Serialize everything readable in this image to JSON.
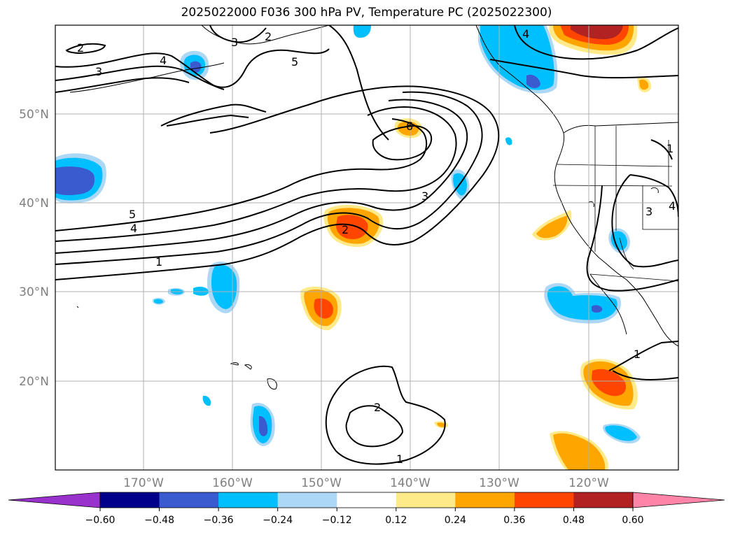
{
  "title": "2025022000 F036 300 hPa PV, Temperature PC (2025022300)",
  "map": {
    "lon_ticks": [
      {
        "value": -170,
        "label": "170°W"
      },
      {
        "value": -160,
        "label": "160°W"
      },
      {
        "value": -150,
        "label": "150°W"
      },
      {
        "value": -140,
        "label": "140°W"
      },
      {
        "value": -130,
        "label": "130°W"
      },
      {
        "value": -120,
        "label": "120°W"
      }
    ],
    "lat_ticks": [
      {
        "value": 50,
        "label": "50°N"
      },
      {
        "value": 40,
        "label": "40°N"
      },
      {
        "value": 30,
        "label": "30°N"
      },
      {
        "value": 20,
        "label": "20°N"
      }
    ],
    "contour_labels": [
      "2",
      "3",
      "4",
      "5",
      "2",
      "3",
      "4",
      "5",
      "4",
      "1",
      "6",
      "3",
      "2",
      "2",
      "1",
      "1",
      "3",
      "1",
      "4"
    ]
  },
  "colorbar": {
    "colors": [
      "#9932cc",
      "#00008b",
      "#3a5bcf",
      "#00bfff",
      "#add8f5",
      "#ffffff",
      "#ffea8a",
      "#ffa500",
      "#ff4500",
      "#b22222",
      "#ff85a8"
    ],
    "labels": [
      "−0.60",
      "−0.48",
      "−0.36",
      "−0.24",
      "−0.12",
      "0.12",
      "0.24",
      "0.36",
      "0.48",
      "0.60"
    ]
  }
}
